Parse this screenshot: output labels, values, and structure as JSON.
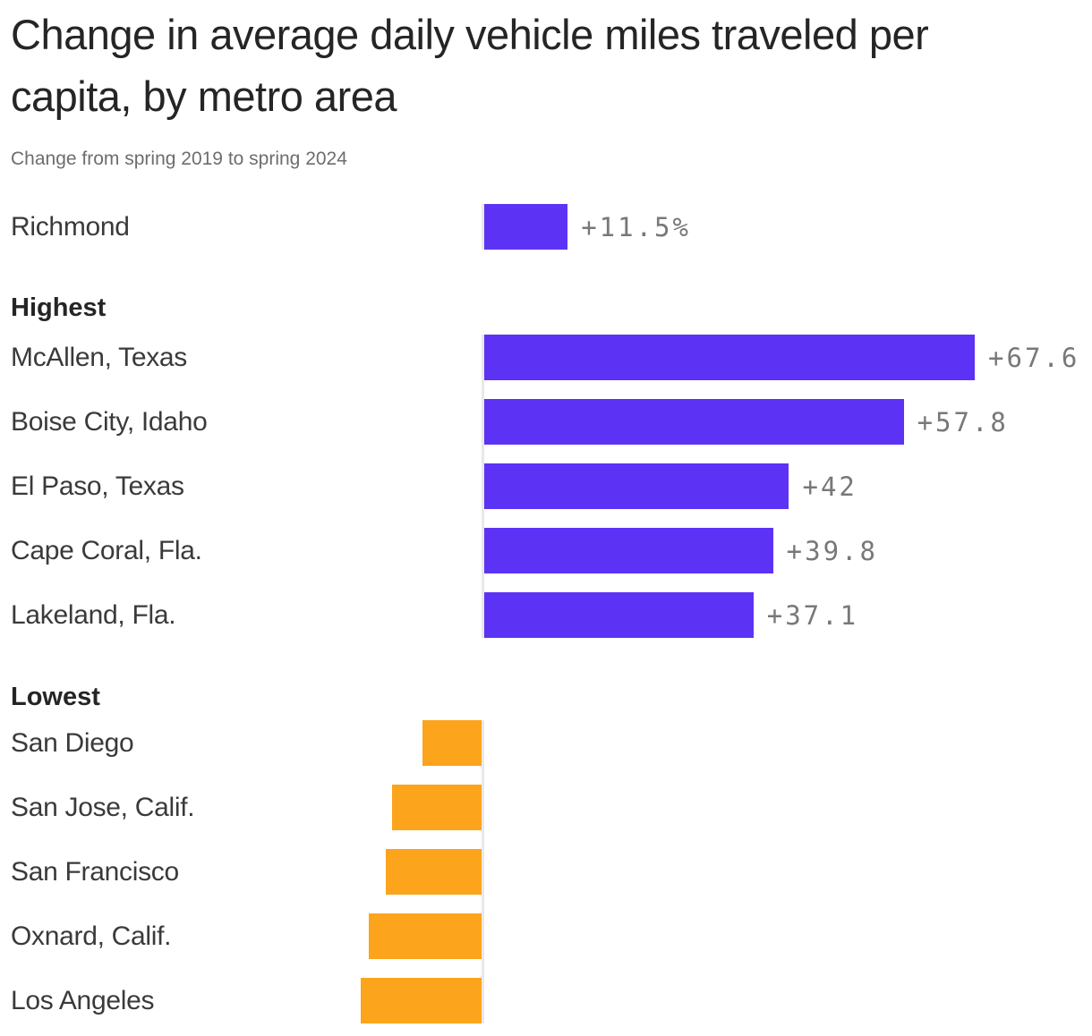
{
  "header": {
    "title": "Change in average daily vehicle miles traveled per capita, by metro area",
    "subtitle": "Change from spring 2019 to spring 2024"
  },
  "colors": {
    "positive_bar": "#5C33F5",
    "negative_bar": "#FBA41C",
    "axis_line": "#E8E8E8",
    "value_label": "#787878"
  },
  "chart_data": {
    "type": "bar",
    "orientation": "horizontal",
    "unit": "percent change",
    "value_axis": {
      "zero_label": "",
      "grid": false,
      "approx_range": [
        -20,
        70
      ]
    },
    "groups": [
      {
        "id": "featured",
        "header": "",
        "items": [
          {
            "label": "Richmond",
            "value": 11.5,
            "display": "+11.5%"
          }
        ]
      },
      {
        "id": "highest",
        "header": "Highest",
        "items": [
          {
            "label": "McAllen, Texas",
            "value": 67.6,
            "display": "+67.6"
          },
          {
            "label": "Boise City, Idaho",
            "value": 57.8,
            "display": "+57.8"
          },
          {
            "label": "El Paso, Texas",
            "value": 42,
            "display": "+42"
          },
          {
            "label": "Cape Coral, Fla.",
            "value": 39.8,
            "display": "+39.8"
          },
          {
            "label": "Lakeland, Fla.",
            "value": 37.1,
            "display": "+37.1"
          }
        ]
      },
      {
        "id": "lowest",
        "header": "Lowest",
        "items": [
          {
            "label": "San Diego",
            "value": -8.1,
            "display": "−8.1"
          },
          {
            "label": "San Jose, Calif.",
            "value": -12.3,
            "display": "−12.3"
          },
          {
            "label": "San Francisco",
            "value": -13.2,
            "display": "−13.2"
          },
          {
            "label": "Oxnard, Calif.",
            "value": -15.5,
            "display": "−15.5"
          },
          {
            "label": "Los Angeles",
            "value": -16.6,
            "display": "−16.6"
          }
        ]
      }
    ]
  }
}
